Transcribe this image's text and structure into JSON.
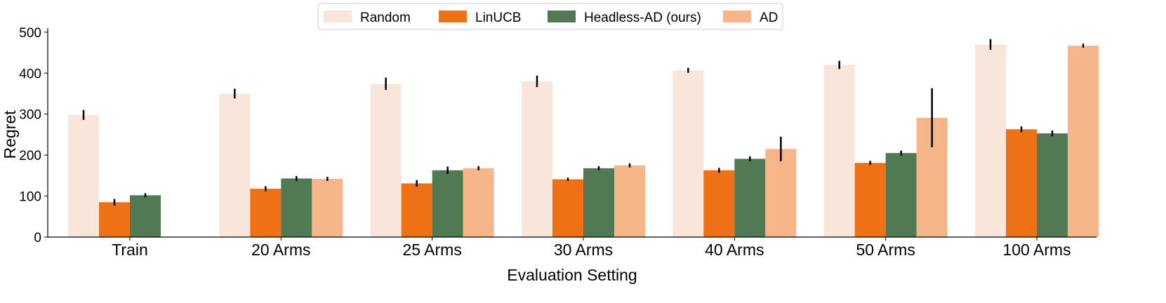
{
  "chart_data": {
    "type": "bar",
    "title": "",
    "xlabel": "Evaluation Setting",
    "ylabel": "Regret",
    "ylim": [
      0,
      510
    ],
    "yticks": [
      0,
      100,
      200,
      300,
      400,
      500
    ],
    "grid": false,
    "legend_position": "top-center",
    "categories": [
      "Train",
      "20 Arms",
      "25 Arms",
      "30 Arms",
      "40 Arms",
      "50 Arms",
      "100 Arms"
    ],
    "series": [
      {
        "name": "Random",
        "color": "#f9e6da",
        "values": [
          298,
          350,
          374,
          380,
          407,
          420,
          470
        ],
        "errors": [
          12,
          12,
          15,
          14,
          6,
          10,
          13
        ]
      },
      {
        "name": "LinUCB",
        "color": "#ee7116",
        "values": [
          85,
          118,
          131,
          141,
          163,
          181,
          263
        ],
        "errors": [
          8,
          6,
          8,
          4,
          6,
          5,
          7
        ]
      },
      {
        "name": "Headless-AD (ours)",
        "color": "#517954",
        "values": [
          102,
          143,
          163,
          168,
          191,
          205,
          253
        ],
        "errors": [
          5,
          6,
          9,
          5,
          6,
          6,
          7
        ]
      },
      {
        "name": "AD",
        "color": "#f7b689",
        "values": [
          null,
          142,
          168,
          175,
          215,
          291,
          467
        ],
        "errors": [
          null,
          5,
          5,
          5,
          30,
          72,
          5
        ]
      }
    ]
  }
}
